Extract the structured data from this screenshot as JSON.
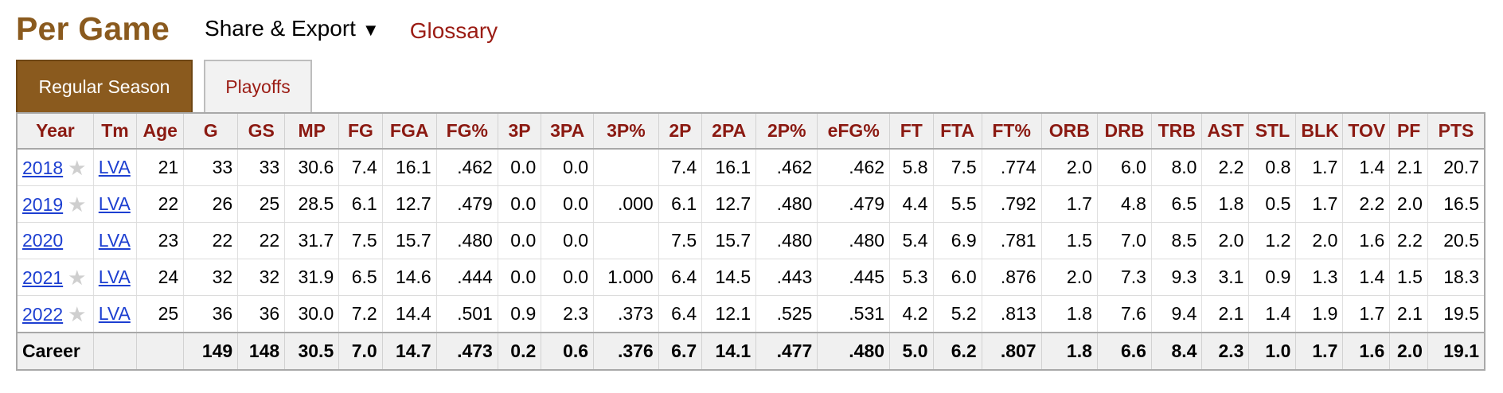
{
  "header": {
    "title": "Per Game",
    "share_export": "Share & Export",
    "share_caret": "▼",
    "glossary": "Glossary"
  },
  "tabs": [
    {
      "label": "Regular Season",
      "active": true
    },
    {
      "label": "Playoffs",
      "active": false
    }
  ],
  "colors": {
    "accent": "#8a5a1e",
    "header_text": "#8b1a12",
    "link": "#1d3fd1"
  },
  "table": {
    "columns": [
      "Year",
      "Tm",
      "Age",
      "G",
      "GS",
      "MP",
      "FG",
      "FGA",
      "FG%",
      "3P",
      "3PA",
      "3P%",
      "2P",
      "2PA",
      "2P%",
      "eFG%",
      "FT",
      "FTA",
      "FT%",
      "ORB",
      "DRB",
      "TRB",
      "AST",
      "STL",
      "BLK",
      "TOV",
      "PF",
      "PTS"
    ],
    "rows": [
      {
        "year": "2018",
        "star": true,
        "team": "LVA",
        "stats": [
          "21",
          "33",
          "33",
          "30.6",
          "7.4",
          "16.1",
          ".462",
          "0.0",
          "0.0",
          "",
          "7.4",
          "16.1",
          ".462",
          ".462",
          "5.8",
          "7.5",
          ".774",
          "2.0",
          "6.0",
          "8.0",
          "2.2",
          "0.8",
          "1.7",
          "1.4",
          "2.1",
          "20.7"
        ]
      },
      {
        "year": "2019",
        "star": true,
        "team": "LVA",
        "stats": [
          "22",
          "26",
          "25",
          "28.5",
          "6.1",
          "12.7",
          ".479",
          "0.0",
          "0.0",
          ".000",
          "6.1",
          "12.7",
          ".480",
          ".479",
          "4.4",
          "5.5",
          ".792",
          "1.7",
          "4.8",
          "6.5",
          "1.8",
          "0.5",
          "1.7",
          "2.2",
          "2.0",
          "16.5"
        ]
      },
      {
        "year": "2020",
        "star": false,
        "team": "LVA",
        "stats": [
          "23",
          "22",
          "22",
          "31.7",
          "7.5",
          "15.7",
          ".480",
          "0.0",
          "0.0",
          "",
          "7.5",
          "15.7",
          ".480",
          ".480",
          "5.4",
          "6.9",
          ".781",
          "1.5",
          "7.0",
          "8.5",
          "2.0",
          "1.2",
          "2.0",
          "1.6",
          "2.2",
          "20.5"
        ]
      },
      {
        "year": "2021",
        "star": true,
        "team": "LVA",
        "stats": [
          "24",
          "32",
          "32",
          "31.9",
          "6.5",
          "14.6",
          ".444",
          "0.0",
          "0.0",
          "1.000",
          "6.4",
          "14.5",
          ".443",
          ".445",
          "5.3",
          "6.0",
          ".876",
          "2.0",
          "7.3",
          "9.3",
          "3.1",
          "0.9",
          "1.3",
          "1.4",
          "1.5",
          "18.3"
        ]
      },
      {
        "year": "2022",
        "star": true,
        "team": "LVA",
        "stats": [
          "25",
          "36",
          "36",
          "30.0",
          "7.2",
          "14.4",
          ".501",
          "0.9",
          "2.3",
          ".373",
          "6.4",
          "12.1",
          ".525",
          ".531",
          "4.2",
          "5.2",
          ".813",
          "1.8",
          "7.6",
          "9.4",
          "2.1",
          "1.4",
          "1.9",
          "1.7",
          "2.1",
          "19.5"
        ]
      }
    ],
    "career": {
      "label": "Career",
      "team": "",
      "stats": [
        "",
        "149",
        "148",
        "30.5",
        "7.0",
        "14.7",
        ".473",
        "0.2",
        "0.6",
        ".376",
        "6.7",
        "14.1",
        ".477",
        ".480",
        "5.0",
        "6.2",
        ".807",
        "1.8",
        "6.6",
        "8.4",
        "2.3",
        "1.0",
        "1.7",
        "1.6",
        "2.0",
        "19.1"
      ]
    }
  }
}
